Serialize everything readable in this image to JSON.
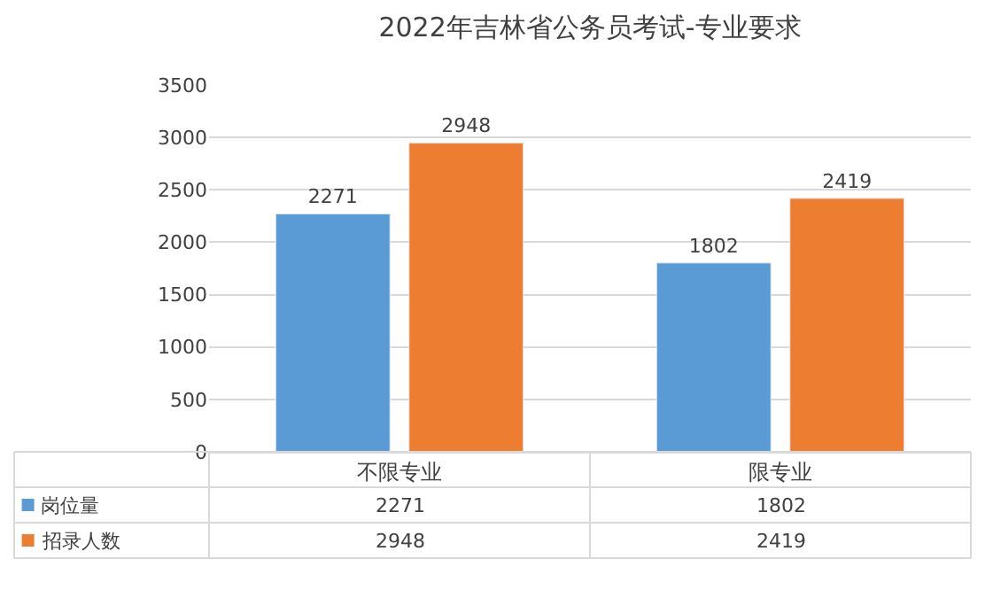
{
  "chart_data": {
    "type": "bar",
    "title": "2022年吉林省公务员考试-专业要求",
    "categories": [
      "不限专业",
      "限专业"
    ],
    "series": [
      {
        "name": "岗位量",
        "color": "#5b9bd5",
        "values": [
          2271,
          1802
        ]
      },
      {
        "name": "招录人数",
        "color": "#ed7d31",
        "values": [
          2948,
          2419
        ]
      }
    ],
    "ylim": [
      0,
      3500
    ],
    "yticks": [
      0,
      500,
      1000,
      1500,
      2000,
      2500,
      3000,
      3500
    ],
    "grid": "y",
    "data_labels": true,
    "legend": "bottom left",
    "annotations": [
      "2271",
      "1802",
      "2948",
      "2419"
    ]
  }
}
